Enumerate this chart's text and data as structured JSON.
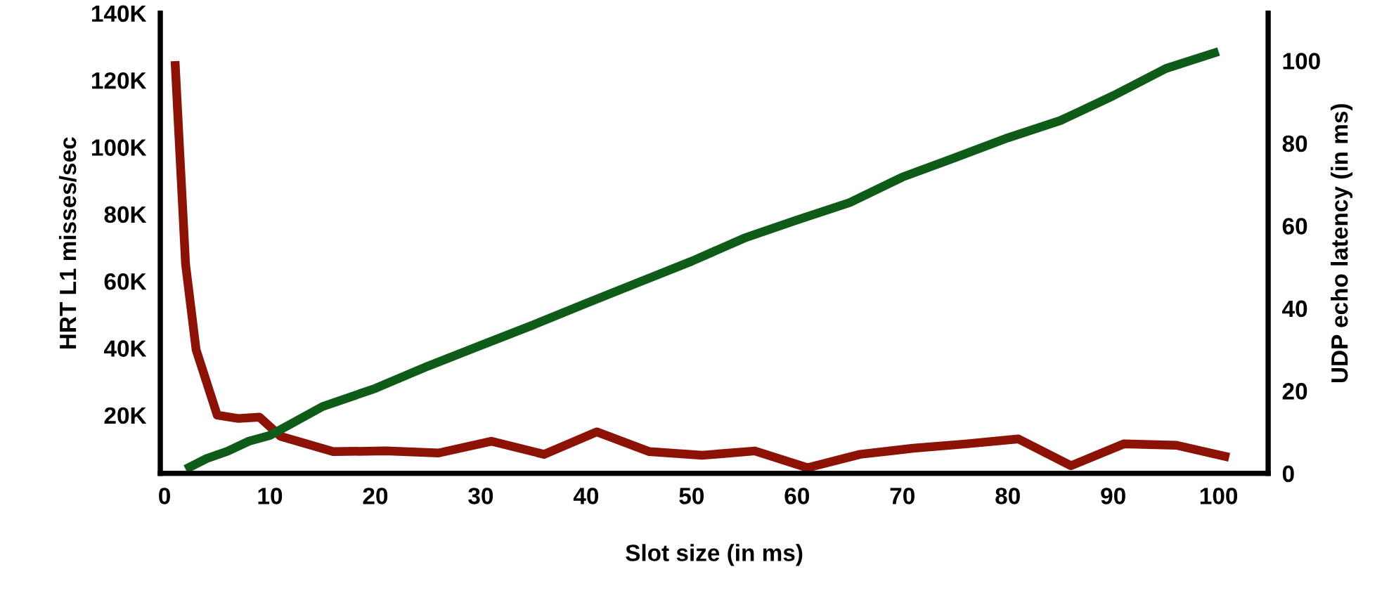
{
  "chart_data": {
    "type": "line",
    "xlabel": "Slot size (in ms)",
    "ylabel": "HRT L1 misses/sec",
    "y2label": "UDP echo latency (in ms)",
    "xlim": [
      -0.4,
      104.7
    ],
    "xticks": [
      0,
      10,
      20,
      30,
      40,
      50,
      60,
      70,
      80,
      90,
      100
    ],
    "ylim": [
      2600,
      140000
    ],
    "yticks": [
      {
        "value": 20000,
        "label": "20K"
      },
      {
        "value": 40000,
        "label": "40K"
      },
      {
        "value": 60000,
        "label": "60K"
      },
      {
        "value": 80000,
        "label": "80K"
      },
      {
        "value": 100000,
        "label": "100K"
      },
      {
        "value": 120000,
        "label": "120K"
      },
      {
        "value": 140000,
        "label": "140K"
      }
    ],
    "y2lim": [
      0,
      111.5
    ],
    "y2ticks": [
      0,
      20,
      40,
      60,
      80,
      100
    ],
    "grid": false,
    "legend": false,
    "marker": "none",
    "line_style": "solid",
    "series": [
      {
        "color": "#0f5c19",
        "axis": "y2",
        "x": [
          2,
          4,
          6,
          8,
          10,
          15,
          20,
          25,
          30,
          35,
          40,
          45,
          50,
          55,
          60,
          65,
          70,
          75,
          80,
          85,
          90,
          95,
          100
        ],
        "values": [
          1,
          3.6,
          5.4,
          7.8,
          9.2,
          16.2,
          20.6,
          26,
          31,
          36,
          41.2,
          46.3,
          51.4,
          57,
          61.4,
          65.6,
          71.8,
          76.5,
          81.3,
          85.5,
          91.5,
          98.1,
          102.2
        ]
      },
      {
        "color": "#8b1205",
        "axis": "y",
        "x": [
          1,
          2,
          3,
          5,
          7,
          9,
          11,
          16,
          21,
          26,
          31,
          36,
          41,
          46,
          51,
          56,
          61,
          66,
          71,
          76,
          81,
          86,
          91,
          96,
          101
        ],
        "values": [
          125700,
          65000,
          39500,
          20000,
          19000,
          19400,
          13700,
          9100,
          9300,
          8700,
          12200,
          8300,
          15000,
          9100,
          8000,
          9300,
          4300,
          8300,
          10100,
          11400,
          12900,
          4900,
          11400,
          11000,
          7400
        ]
      }
    ]
  }
}
